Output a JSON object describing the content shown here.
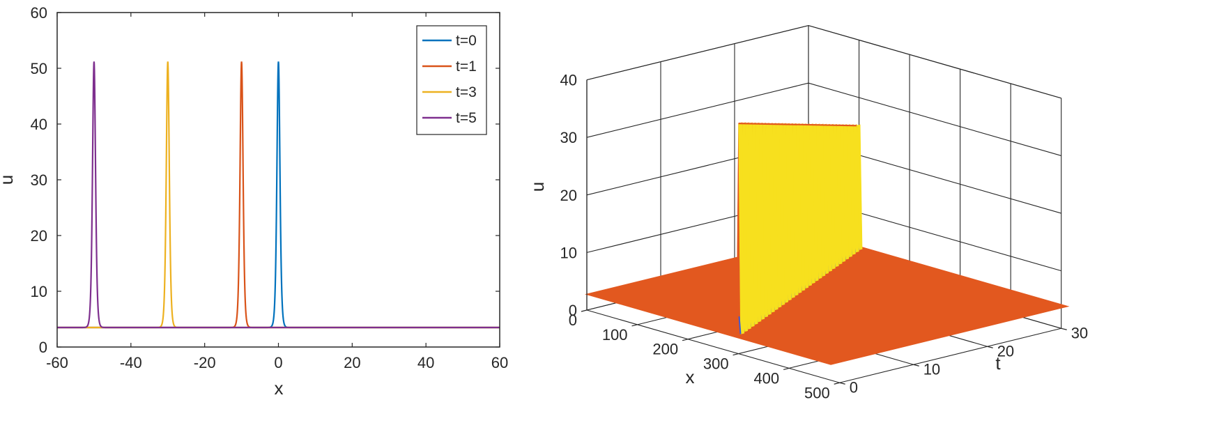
{
  "chart_data": [
    {
      "type": "line",
      "xlabel": "x",
      "ylabel": "u",
      "xlim": [
        -60,
        60
      ],
      "ylim": [
        0,
        60
      ],
      "xticks": [
        "-60",
        "-40",
        "-20",
        "0",
        "20",
        "40",
        "60"
      ],
      "yticks": [
        "0",
        "10",
        "20",
        "30",
        "40",
        "50",
        "60"
      ],
      "baseline": 3.5,
      "grid": false,
      "legend": {
        "position": "top-right"
      },
      "series": [
        {
          "name": "t=0",
          "color": "#0072BD",
          "peak_x": 0,
          "peak_u": 51.2
        },
        {
          "name": "t=1",
          "color": "#D95319",
          "peak_x": -10,
          "peak_u": 51.2
        },
        {
          "name": "t=3",
          "color": "#EDB120",
          "peak_x": -30,
          "peak_u": 51.2
        },
        {
          "name": "t=5",
          "color": "#7E2F8E",
          "peak_x": -50,
          "peak_u": 51.2
        }
      ]
    },
    {
      "type": "surface",
      "xlabel": "x",
      "ylabel": "t",
      "zlabel": "u",
      "xlim": [
        0,
        500
      ],
      "ylim": [
        0,
        30
      ],
      "zlim": [
        0,
        40
      ],
      "xticks": [
        "0",
        "100",
        "200",
        "300",
        "400",
        "500"
      ],
      "yticks": [
        "0",
        "10",
        "20",
        "30"
      ],
      "zticks": [
        "0",
        "10",
        "20",
        "30",
        "40"
      ],
      "grid": true,
      "base_level": 3.5,
      "ridge_start": {
        "x": 300,
        "t": 0,
        "u": 40
      },
      "ridge_end": {
        "x": 95,
        "t": 30,
        "u": 25
      },
      "colors": {
        "low": "#E2581F",
        "mid": "#F7E01E",
        "base": "#3D5BD6"
      }
    }
  ]
}
